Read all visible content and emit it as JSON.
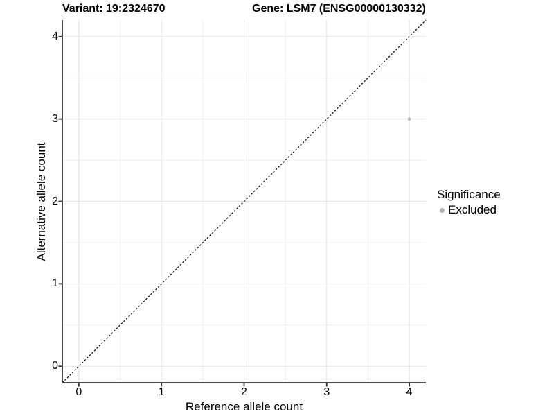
{
  "header": {
    "variant_title": "Variant: 19:2324670",
    "gene_title": "Gene: LSM7 (ENSG00000130332)"
  },
  "chart_data": {
    "type": "scatter",
    "title_left": "Variant: 19:2324670",
    "title_right": "Gene: LSM7 (ENSG00000130332)",
    "xlabel": "Reference allele count",
    "ylabel": "Alternative allele count",
    "xlim": [
      -0.2,
      4.2
    ],
    "ylim": [
      -0.2,
      4.2
    ],
    "x_ticks": [
      0,
      1,
      2,
      3,
      4
    ],
    "y_ticks": [
      0,
      1,
      2,
      3,
      4
    ],
    "grid": "major and minor gridlines on, white background",
    "legend_position": "right",
    "legend_title": "Significance",
    "series": [
      {
        "name": "Excluded",
        "color": "#b3b3b3",
        "points": [
          [
            4,
            3
          ]
        ]
      }
    ],
    "reference_line": {
      "style": "dashed",
      "color": "#000000",
      "from": [
        -0.2,
        -0.2
      ],
      "to": [
        4.2,
        4.2
      ]
    }
  }
}
